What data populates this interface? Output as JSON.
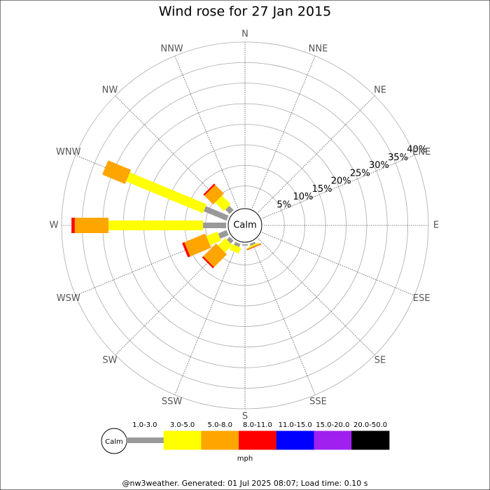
{
  "chart_data": {
    "type": "windrose",
    "title": "Wind rose for 27 Jan 2015",
    "categories": [
      "N",
      "NNE",
      "NE",
      "ENE",
      "E",
      "ESE",
      "SE",
      "SSE",
      "S",
      "SSW",
      "SW",
      "WSW",
      "W",
      "WNW",
      "NW",
      "NNW"
    ],
    "calm_label": "Calm",
    "units": "mph",
    "rlim": [
      0,
      40
    ],
    "rticks": [
      {
        "value": 5,
        "label": "5%"
      },
      {
        "value": 10,
        "label": "10%"
      },
      {
        "value": 15,
        "label": "15%"
      },
      {
        "value": 20,
        "label": "20%"
      },
      {
        "value": 25,
        "label": "25%"
      },
      {
        "value": 30,
        "label": "30%"
      },
      {
        "value": 35,
        "label": "35%"
      },
      {
        "value": 40,
        "label": "40%"
      }
    ],
    "series": [
      {
        "name": "1.0-3.0",
        "color": "#999999",
        "values": [
          0,
          0,
          0,
          0,
          0,
          0,
          0,
          0.5,
          0.3,
          0.8,
          1.0,
          2.2,
          5.6,
          6.0,
          1.5,
          0
        ]
      },
      {
        "name": "3.0-5.0",
        "color": "#ffff00",
        "values": [
          0,
          0,
          0,
          0,
          0,
          0,
          0,
          0.3,
          0,
          1.5,
          2.5,
          2.9,
          23.0,
          20.2,
          3.0,
          0
        ]
      },
      {
        "name": "5.0-8.0",
        "color": "#ffa500",
        "values": [
          0,
          0,
          0,
          0,
          0,
          0,
          0,
          0.3,
          0,
          0,
          4.4,
          5.5,
          8.2,
          6.0,
          3.0,
          0
        ]
      },
      {
        "name": "8.0-11.0",
        "color": "#ff0000",
        "values": [
          0,
          0,
          0,
          0,
          0,
          0,
          0,
          0.1,
          0,
          0,
          0.4,
          0.6,
          0.8,
          0,
          0.4,
          0
        ]
      },
      {
        "name": "11.0-15.0",
        "color": "#0000ff",
        "values": [
          0,
          0,
          0,
          0,
          0,
          0,
          0,
          0,
          0,
          0,
          0,
          0,
          0,
          0,
          0,
          0
        ]
      },
      {
        "name": "15.0-20.0",
        "color": "#a020f0",
        "values": [
          0,
          0,
          0,
          0,
          0,
          0,
          0,
          0,
          0,
          0,
          0,
          0,
          0,
          0,
          0,
          0
        ]
      },
      {
        "name": "20.0-50.0",
        "color": "#000000",
        "values": [
          0,
          0,
          0,
          0,
          0,
          0,
          0,
          0,
          0,
          0,
          0,
          0,
          0,
          0,
          0,
          0
        ]
      }
    ]
  },
  "footer": "@nw3weather. Generated: 01 Jul 2025 08:07; Load time: 0.10 s"
}
